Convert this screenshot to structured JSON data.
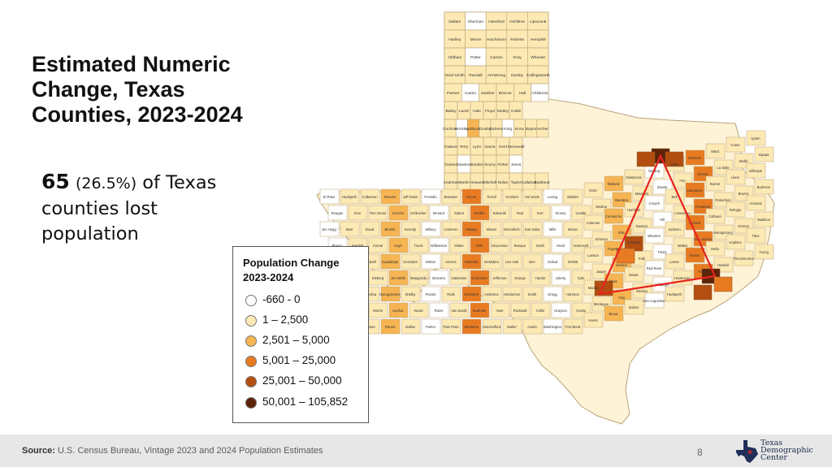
{
  "slide": {
    "title": "Estimated Numeric Change, Texas Counties, 2023-2024",
    "stat_number": "65",
    "stat_percent": "(26.5%)",
    "stat_text": " of Texas counties lost population"
  },
  "legend": {
    "title": "Population Change 2023-2024",
    "items": [
      {
        "label": "-660 - 0",
        "color": "#ffffff"
      },
      {
        "label": "1 – 2,500",
        "color": "#fde9b4"
      },
      {
        "label": "2,501 – 5,000",
        "color": "#f6b452"
      },
      {
        "label": "5,001 – 25,000",
        "color": "#e87b22"
      },
      {
        "label": "25,001 – 50,000",
        "color": "#b24e10"
      },
      {
        "label": "50,001 – 105,852",
        "color": "#5c2408"
      }
    ]
  },
  "map": {
    "triangle_color": "#e8231f",
    "counties": {
      "row1": [
        "Dallam",
        "Sherman",
        "Hansford",
        "Ochiltree",
        "Lipscomb"
      ],
      "row2": [
        "Hartley",
        "Moore",
        "Hutchinson",
        "Roberts",
        "Hemphill"
      ],
      "row3": [
        "Oldham",
        "Potter",
        "Carson",
        "Gray",
        "Wheeler"
      ],
      "row4": [
        "Deaf Smith",
        "Randall",
        "Armstrong",
        "Donley",
        "Collingsworth"
      ],
      "row5": [
        "Parmer",
        "Castro",
        "Swisher",
        "Briscoe",
        "Hall",
        "Childress"
      ],
      "row6": [
        "Bailey",
        "Lamb",
        "Hale",
        "Floyd",
        "Motley",
        "Cottle"
      ],
      "row7": [
        "Cochran",
        "Hockley",
        "Lubbock",
        "Crosby",
        "Dickens",
        "King",
        "Knox",
        "Baylor",
        "Archer"
      ],
      "row8": [
        "Yoakum",
        "Terry",
        "Lynn",
        "Garza",
        "Kent",
        "Stonewall"
      ],
      "row9": [
        "Gaines",
        "Dawson",
        "Borden",
        "Scurry",
        "Fisher",
        "Jones"
      ],
      "row10": [
        "Andrews",
        "Martin",
        "Howard",
        "Mitchell",
        "Nolan",
        "Taylor",
        "Callahan",
        "Eastland"
      ],
      "west": [
        "El Paso",
        "Hudspeth",
        "Culberson",
        "Reeves",
        "Jeff Davis",
        "Presidio",
        "Brewster",
        "Pecos",
        "Terrell",
        "Crockett",
        "Val Verde",
        "Loving",
        "Winkler",
        "Ector",
        "Midland",
        "Glasscock",
        "Sterling",
        "Coke",
        "Runnels",
        "Ward",
        "Crane",
        "Upton",
        "Reagan",
        "Irion",
        "Tom Green",
        "Concho",
        "Schleicher",
        "Menard",
        "Sutton",
        "Kimble",
        "Edwards",
        "Real",
        "Kerr",
        "Kinney",
        "Uvalde",
        "Medina",
        "Bandera",
        "Maverick",
        "Zavala",
        "Frio",
        "Dimmit",
        "La Salle",
        "Webb",
        "Zapata",
        "Jim Hogg",
        "Starr",
        "Duval",
        "Brooks",
        "Kenedy",
        "Willacy",
        "Cameron",
        "Hidalgo",
        "Mason",
        "McCulloch",
        "San Saba",
        "Mills",
        "Brown",
        "Coleman",
        "Comanche",
        "Hamilton",
        "Coryell",
        "Bell",
        "Lampasas",
        "Burnet",
        "Llano",
        "Gillespie",
        "Blanco",
        "Kendall",
        "Comal",
        "Hays",
        "Travis",
        "Williamson",
        "Milam",
        "Falls",
        "McLennan",
        "Bosque",
        "Erath",
        "Hood",
        "Somervell",
        "Johnson",
        "Ellis",
        "Navarro",
        "Hill",
        "Limestone",
        "Freestone",
        "Robertson",
        "Brazos",
        "Burleson",
        "Lee",
        "Bastrop",
        "Caldwell",
        "Guadalupe",
        "Gonzales",
        "Wilson",
        "Karnes",
        "Atascosa",
        "McMullen",
        "Live Oak",
        "Bee",
        "Goliad",
        "DeWitt",
        "Lavaca",
        "Fayette",
        "Colorado",
        "Wharton",
        "Jackson",
        "Victoria",
        "Calhoun",
        "Refugio",
        "Aransas",
        "San Patricio",
        "Nueces",
        "Kleberg",
        "Jim Wells",
        "Matagorda",
        "Brazoria",
        "Galveston",
        "Chambers",
        "Jefferson",
        "Orange",
        "Hardin",
        "Liberty",
        "Tyler",
        "Jasper",
        "Newton",
        "Polk",
        "Trinity",
        "Walker",
        "San Jacinto",
        "Montgomery",
        "Grimes",
        "Madison",
        "Leon",
        "Houston",
        "Angelina",
        "Nacogdoches",
        "Shelby",
        "Panola",
        "Rusk",
        "Cherokee",
        "Anderson",
        "Henderson",
        "Smith",
        "Gregg",
        "Harrison",
        "Marion",
        "Cass",
        "Bowie",
        "Red River",
        "Lamar",
        "Fannin",
        "Delta",
        "Hopkins",
        "Titus",
        "Franklin",
        "Camp",
        "Morris",
        "Upshur",
        "Wood",
        "Rains",
        "Van Zandt",
        "Kaufman",
        "Hunt",
        "Rockwall",
        "Collin",
        "Grayson",
        "Cooke",
        "Montague",
        "Clay",
        "Wichita",
        "Wilbarger",
        "Hardeman",
        "Foard",
        "Haskell",
        "Throckmorton",
        "Young",
        "Jack",
        "Wise",
        "Denton",
        "Tarrant",
        "Dallas",
        "Parker",
        "Palo Pinto",
        "Stephens",
        "Shackelford",
        "Waller",
        "Austin",
        "Washington",
        "Fort Bend",
        "Harris",
        "Bexar",
        "Sabine",
        "San Augustine",
        "Hudspeth"
      ]
    }
  },
  "footer": {
    "source_label": "Source:",
    "source_text": " U.S. Census Bureau, Vintage 2023 and 2024 Population Estimates",
    "page_number": "8",
    "logo_line1": "Texas",
    "logo_line2": "Demographic",
    "logo_line3": "Center"
  }
}
